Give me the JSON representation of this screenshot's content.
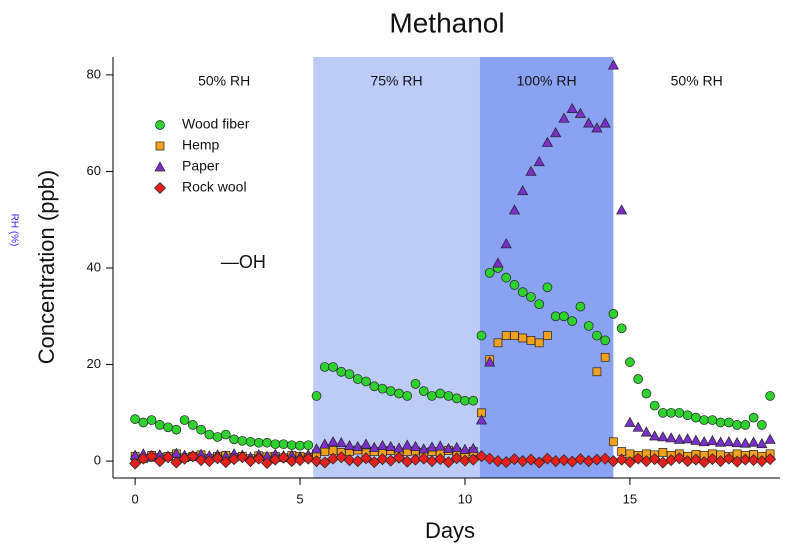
{
  "chart_data": {
    "type": "scatter",
    "title": "Methanol",
    "xlabel": "Days",
    "ylabel": "Concentration (ppb)",
    "y2label": "RH (%)",
    "xlim": [
      -0.67,
      19.55
    ],
    "ylim": [
      -3.5,
      83.7
    ],
    "xticks": [
      0,
      5,
      10,
      15
    ],
    "yticks": [
      0,
      20,
      40,
      60,
      80
    ],
    "regions": [
      {
        "label": "50% RH",
        "start": 0,
        "end": 5.4,
        "color": "#ffffff"
      },
      {
        "label": "75% RH",
        "start": 5.4,
        "end": 10.45,
        "color": "#bccbf8"
      },
      {
        "label": "100% RH",
        "start": 10.45,
        "end": 14.5,
        "color": "#8aa2f2"
      },
      {
        "label": "50% RH",
        "start": 14.5,
        "end": 19.55,
        "color": "#ffffff"
      }
    ],
    "annotations": [
      {
        "text": "—OH",
        "x": 2.6,
        "y": 41
      }
    ],
    "x": [
      0,
      0.25,
      0.5,
      0.75,
      1,
      1.25,
      1.5,
      1.75,
      2,
      2.25,
      2.5,
      2.75,
      3,
      3.25,
      3.5,
      3.75,
      4,
      4.25,
      4.5,
      4.75,
      5,
      5.25,
      5.5,
      5.75,
      6,
      6.25,
      6.5,
      6.75,
      7,
      7.25,
      7.5,
      7.75,
      8,
      8.25,
      8.5,
      8.75,
      9,
      9.25,
      9.5,
      9.75,
      10,
      10.25,
      10.5,
      10.75,
      11,
      11.25,
      11.5,
      11.75,
      12,
      12.25,
      12.5,
      12.75,
      13,
      13.25,
      13.5,
      13.75,
      14,
      14.25,
      14.5,
      14.75,
      15,
      15.25,
      15.5,
      15.75,
      16,
      16.25,
      16.5,
      16.75,
      17,
      17.25,
      17.5,
      17.75,
      18,
      18.25,
      18.5,
      18.75,
      19,
      19.25
    ],
    "series": [
      {
        "name": "Wood fiber",
        "color": "#2ed12e",
        "marker": "circle",
        "values": [
          8.7,
          8,
          8.5,
          7.5,
          7,
          6.5,
          8.5,
          7.5,
          6.5,
          5.5,
          5,
          5.5,
          4.5,
          4.2,
          4,
          3.8,
          3.8,
          3.5,
          3.5,
          3.3,
          3.2,
          3.3,
          13.5,
          19.5,
          19.5,
          18.5,
          18,
          17,
          16.5,
          15.5,
          15,
          14.5,
          14,
          13.5,
          16,
          14.5,
          13.5,
          14,
          13.5,
          13,
          12.5,
          12.5,
          26,
          39,
          40,
          38,
          36.5,
          35,
          34,
          32.5,
          36,
          30,
          30,
          29,
          32,
          28,
          26,
          25,
          30.5,
          27.5,
          20.5,
          17,
          14,
          11.5,
          10,
          10,
          10,
          9.5,
          9,
          8.5,
          8.5,
          8,
          8,
          7.5,
          7.5,
          9,
          7.5,
          13.5
        ]
      },
      {
        "name": "Hemp",
        "color": "#f2a11f",
        "marker": "square",
        "values": [
          1,
          0.5,
          1.2,
          0.8,
          1,
          1.5,
          0.7,
          1,
          1.3,
          0.6,
          1,
          1.2,
          0.8,
          1,
          0.5,
          1.1,
          0.9,
          1,
          0.7,
          1.2,
          1,
          0.8,
          1.5,
          2,
          2.2,
          1.8,
          2,
          2.3,
          1.7,
          2,
          1.9,
          2.2,
          1.6,
          2,
          2.1,
          1.8,
          2,
          1.7,
          2.2,
          1.9,
          1.5,
          2,
          10,
          21,
          24.5,
          26,
          26,
          25.5,
          25,
          24.5,
          26,
          null,
          null,
          null,
          null,
          null,
          18.5,
          21.5,
          4,
          2,
          1.5,
          1.2,
          1.5,
          1.3,
          1.8,
          1.2,
          1.5,
          1,
          1.4,
          1.2,
          1.5,
          1.3,
          1,
          1.5,
          1.2,
          1.4,
          1,
          1.5
        ]
      },
      {
        "name": "Paper",
        "color": "#7a2fc8",
        "marker": "triangle",
        "values": [
          1.2,
          1.5,
          0.8,
          1.3,
          1,
          1.6,
          1.2,
          0.9,
          1.4,
          1.1,
          1.3,
          1,
          1.5,
          1.2,
          0.8,
          1.3,
          1,
          1.4,
          1.1,
          1.2,
          0.9,
          1.3,
          2.5,
          3.5,
          4,
          3.8,
          3.2,
          3,
          3.5,
          2.8,
          3.2,
          3,
          2.7,
          3.3,
          3,
          2.5,
          2.9,
          3.1,
          2.6,
          2.8,
          2.4,
          2.6,
          8.5,
          20.5,
          41,
          45,
          52,
          56,
          60,
          62,
          66,
          68,
          71,
          73,
          72,
          70,
          69,
          70,
          82,
          52,
          8,
          7,
          6,
          5.2,
          5,
          4.8,
          4.5,
          4.6,
          4.3,
          4,
          4.2,
          3.9,
          4,
          3.8,
          3.7,
          3.9,
          3.6,
          4.5
        ]
      },
      {
        "name": "Rock wool",
        "color": "#e3201c",
        "marker": "diamond",
        "values": [
          -0.5,
          0.5,
          1,
          0,
          0.8,
          -0.3,
          0.5,
          1,
          0.2,
          0,
          0.6,
          -0.2,
          0.4,
          0.8,
          0,
          0.5,
          -0.4,
          0.3,
          0.7,
          0,
          0.2,
          0.5,
          0,
          -0.3,
          0.5,
          0.8,
          0.2,
          0,
          0.6,
          -0.2,
          0.4,
          0.1,
          0.7,
          -0.1,
          0.3,
          0.5,
          0,
          0.4,
          -0.2,
          0.6,
          0.1,
          0.3,
          1,
          0.5,
          0,
          -0.2,
          0.4,
          0,
          0.3,
          -0.3,
          0.5,
          0,
          0.2,
          -0.1,
          0.4,
          0,
          0.3,
          0.5,
          0,
          0.3,
          -0.2,
          0.5,
          0,
          0.4,
          -0.3,
          0.2,
          0.6,
          0,
          0.3,
          -0.2,
          0.4,
          0,
          0.5,
          -0.1,
          0.3,
          0.2,
          0,
          0.4
        ]
      }
    ]
  }
}
